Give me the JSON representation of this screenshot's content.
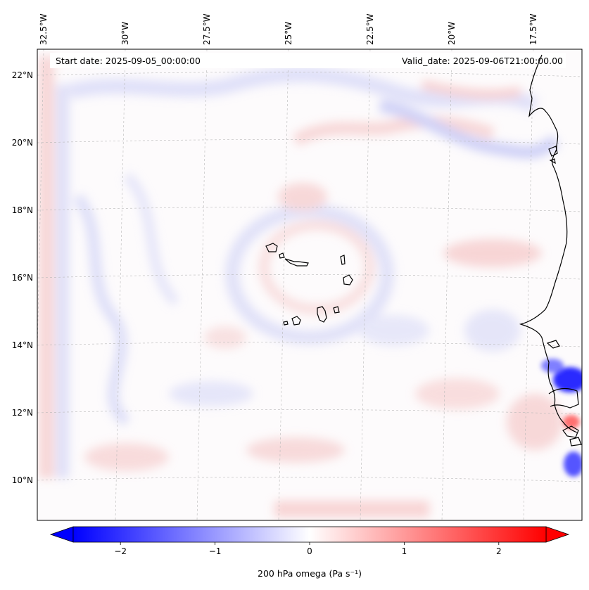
{
  "map": {
    "start_date_label": "Start date: 2025-09-05_00:00:00",
    "valid_date_label": "Valid_date: 2025-09-06T21:00:00.00",
    "lon_ticks": [
      {
        "value": -32.5,
        "label": "32.5°W"
      },
      {
        "value": -30.0,
        "label": "30°W"
      },
      {
        "value": -27.5,
        "label": "27.5°W"
      },
      {
        "value": -25.0,
        "label": "25°W"
      },
      {
        "value": -22.5,
        "label": "22.5°W"
      },
      {
        "value": -20.0,
        "label": "20°W"
      },
      {
        "value": -17.5,
        "label": "17.5°W"
      }
    ],
    "lat_ticks": [
      {
        "value": 22,
        "label": "22°N"
      },
      {
        "value": 20,
        "label": "20°N"
      },
      {
        "value": 18,
        "label": "18°N"
      },
      {
        "value": 16,
        "label": "16°N"
      },
      {
        "value": 14,
        "label": "14°N"
      },
      {
        "value": 12,
        "label": "12°N"
      },
      {
        "value": 10,
        "label": "10°N"
      }
    ],
    "gridlines": true,
    "colormap": "bwr",
    "colors": {
      "negative": "#0000ff",
      "zero": "#ffffff",
      "positive": "#ff0000",
      "coastline": "#000000",
      "grid": "#b0b0b0"
    }
  },
  "colorbar": {
    "label": "200 hPa omega (Pa s⁻¹)",
    "vmin": -2.5,
    "vmax": 2.5,
    "extend": "both",
    "ticks": [
      {
        "value": -2,
        "label": "−2"
      },
      {
        "value": -1,
        "label": "−1"
      },
      {
        "value": 0,
        "label": "0"
      },
      {
        "value": 1,
        "label": "1"
      },
      {
        "value": 2,
        "label": "2"
      }
    ]
  }
}
